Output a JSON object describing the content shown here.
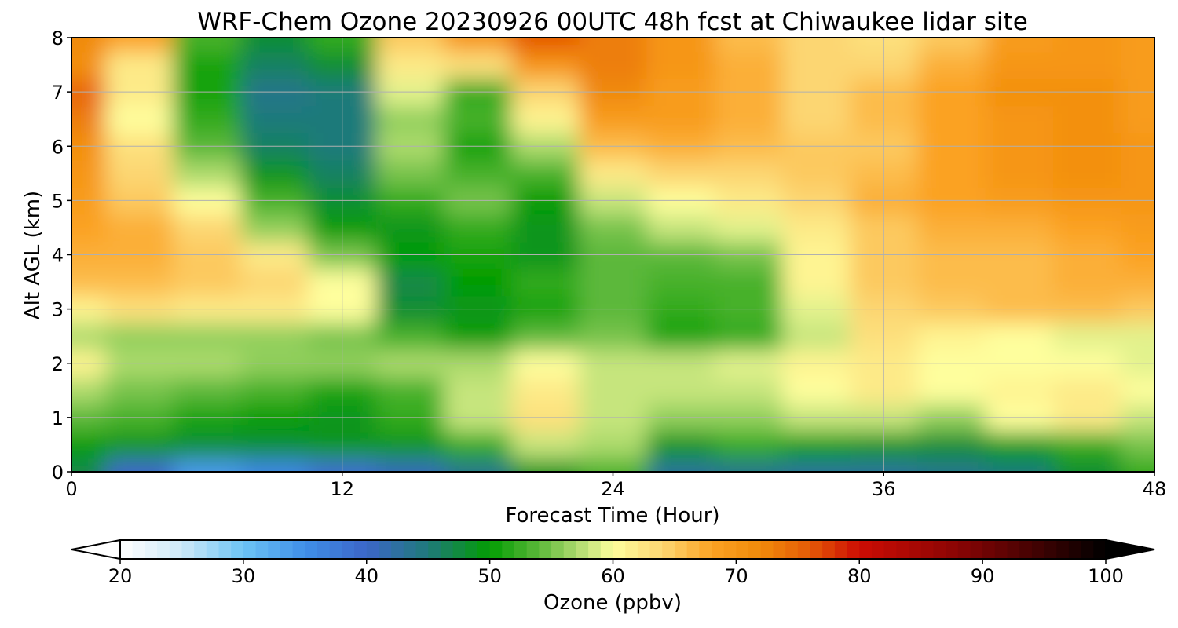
{
  "chart_data": {
    "type": "heatmap",
    "title": "WRF-Chem Ozone  20230926 00UTC 48h fcst at Chiwaukee lidar site",
    "xlabel": "Forecast Time (Hour)",
    "ylabel": "Alt AGL (km)",
    "xlim": [
      0,
      48
    ],
    "ylim": [
      0,
      8
    ],
    "xticks": [
      0,
      12,
      24,
      36,
      48
    ],
    "yticks": [
      0,
      1,
      2,
      3,
      4,
      5,
      6,
      7,
      8
    ],
    "grid": true,
    "x_hours": [
      0,
      3,
      6,
      9,
      12,
      15,
      18,
      21,
      24,
      27,
      30,
      33,
      36,
      39,
      42,
      45,
      48
    ],
    "y_km": [
      0,
      0.5,
      1,
      1.5,
      2,
      2.5,
      3,
      3.5,
      4,
      4.5,
      5,
      5.5,
      6,
      6.5,
      7,
      7.5,
      8
    ],
    "ozone_ppbv": [
      [
        47,
        40,
        34,
        36,
        39,
        41,
        44,
        49,
        53,
        43,
        44,
        43,
        43,
        44,
        45,
        48,
        52
      ],
      [
        50,
        49,
        48,
        48,
        49,
        49,
        52,
        58,
        57,
        49,
        52,
        50,
        49,
        48,
        50,
        52,
        55
      ],
      [
        54,
        53,
        51,
        50,
        49,
        52,
        58,
        63,
        58,
        56,
        56,
        58,
        58,
        56,
        60,
        62,
        58
      ],
      [
        57,
        55,
        54,
        53,
        51,
        53,
        58,
        62,
        58,
        58,
        58,
        60,
        62,
        60,
        61,
        62,
        60
      ],
      [
        61,
        57,
        57,
        56,
        56,
        57,
        57,
        60,
        58,
        58,
        59,
        61,
        62,
        60,
        60,
        60,
        59
      ],
      [
        57,
        56,
        56,
        56,
        55,
        53,
        50,
        54,
        55,
        51,
        52,
        58,
        63,
        61,
        60,
        59,
        59
      ],
      [
        61,
        63,
        62,
        62,
        60,
        48,
        49,
        51,
        54,
        52,
        53,
        59,
        64,
        65,
        66,
        66,
        65
      ],
      [
        66,
        66,
        65,
        64,
        60,
        47,
        50,
        52,
        54,
        53,
        53,
        61,
        65,
        66,
        66,
        67,
        67
      ],
      [
        67,
        67,
        65,
        62,
        55,
        50,
        51,
        49,
        54,
        54,
        55,
        61,
        65,
        66,
        66,
        67,
        68
      ],
      [
        68,
        67,
        64,
        56,
        50,
        49,
        52,
        49,
        55,
        58,
        59,
        62,
        65,
        67,
        67,
        68,
        69
      ],
      [
        69,
        65,
        60,
        53,
        48,
        52,
        55,
        50,
        58,
        60,
        62,
        64,
        67,
        68,
        69,
        70,
        70
      ],
      [
        70,
        64,
        57,
        49,
        46,
        55,
        53,
        53,
        62,
        64,
        64,
        65,
        66,
        68,
        70,
        71,
        70
      ],
      [
        71,
        63,
        54,
        46,
        45,
        57,
        51,
        57,
        66,
        67,
        66,
        65,
        65,
        68,
        70,
        71,
        70
      ],
      [
        73,
        60,
        52,
        45,
        45,
        56,
        53,
        61,
        69,
        69,
        67,
        64,
        66,
        68,
        70,
        71,
        69
      ],
      [
        75,
        62,
        51,
        44,
        45,
        59,
        52,
        64,
        72,
        69,
        67,
        64,
        66,
        68,
        71,
        71,
        69
      ],
      [
        71,
        62,
        51,
        46,
        48,
        62,
        63,
        70,
        73,
        70,
        67,
        64,
        64,
        67,
        70,
        70,
        69
      ],
      [
        72,
        68,
        53,
        48,
        52,
        65,
        70,
        76,
        73,
        70,
        66,
        64,
        63,
        65,
        69,
        70,
        69
      ]
    ]
  },
  "colorbar": {
    "label": "Ozone  (ppbv)",
    "min": 20,
    "max": 100,
    "ticks": [
      20,
      30,
      40,
      50,
      60,
      70,
      80,
      90,
      100
    ],
    "extend": "both",
    "stops": [
      {
        "v": 20,
        "c": "#ffffff"
      },
      {
        "v": 25,
        "c": "#cde9f8"
      },
      {
        "v": 30,
        "c": "#6cc4f5"
      },
      {
        "v": 35,
        "c": "#3f8fe8"
      },
      {
        "v": 40,
        "c": "#3c66c8"
      },
      {
        "v": 45,
        "c": "#1f7a7a"
      },
      {
        "v": 50,
        "c": "#039c03"
      },
      {
        "v": 54,
        "c": "#5cb83a"
      },
      {
        "v": 58,
        "c": "#c6e57d"
      },
      {
        "v": 60,
        "c": "#fefe9d"
      },
      {
        "v": 64,
        "c": "#fcd672"
      },
      {
        "v": 68,
        "c": "#fba223"
      },
      {
        "v": 72,
        "c": "#f08a0a"
      },
      {
        "v": 76,
        "c": "#e55a06"
      },
      {
        "v": 80,
        "c": "#cc0c04"
      },
      {
        "v": 88,
        "c": "#8a0404"
      },
      {
        "v": 95,
        "c": "#3a0202"
      },
      {
        "v": 100,
        "c": "#000000"
      }
    ]
  }
}
